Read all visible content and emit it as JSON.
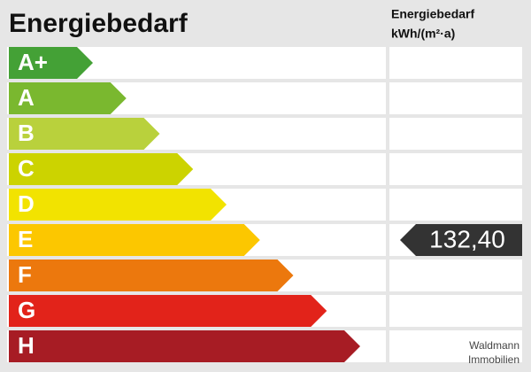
{
  "title": "Energiebedarf",
  "column_header": {
    "line1": "Energiebedarf",
    "line2": "kWh/(m²·a)"
  },
  "classes": [
    {
      "label": "A+",
      "color": "#44a136"
    },
    {
      "label": "A",
      "color": "#7ab82f"
    },
    {
      "label": "B",
      "color": "#b9d13c"
    },
    {
      "label": "C",
      "color": "#ccd300"
    },
    {
      "label": "D",
      "color": "#f2e300"
    },
    {
      "label": "E",
      "color": "#fcc700"
    },
    {
      "label": "F",
      "color": "#ec780d"
    },
    {
      "label": "G",
      "color": "#e2231a"
    },
    {
      "label": "H",
      "color": "#a71c24"
    }
  ],
  "indicator": {
    "label": "132,40",
    "color": "#333333"
  },
  "footer": {
    "line1": "Waldmann",
    "line2": "Immobilien"
  }
}
